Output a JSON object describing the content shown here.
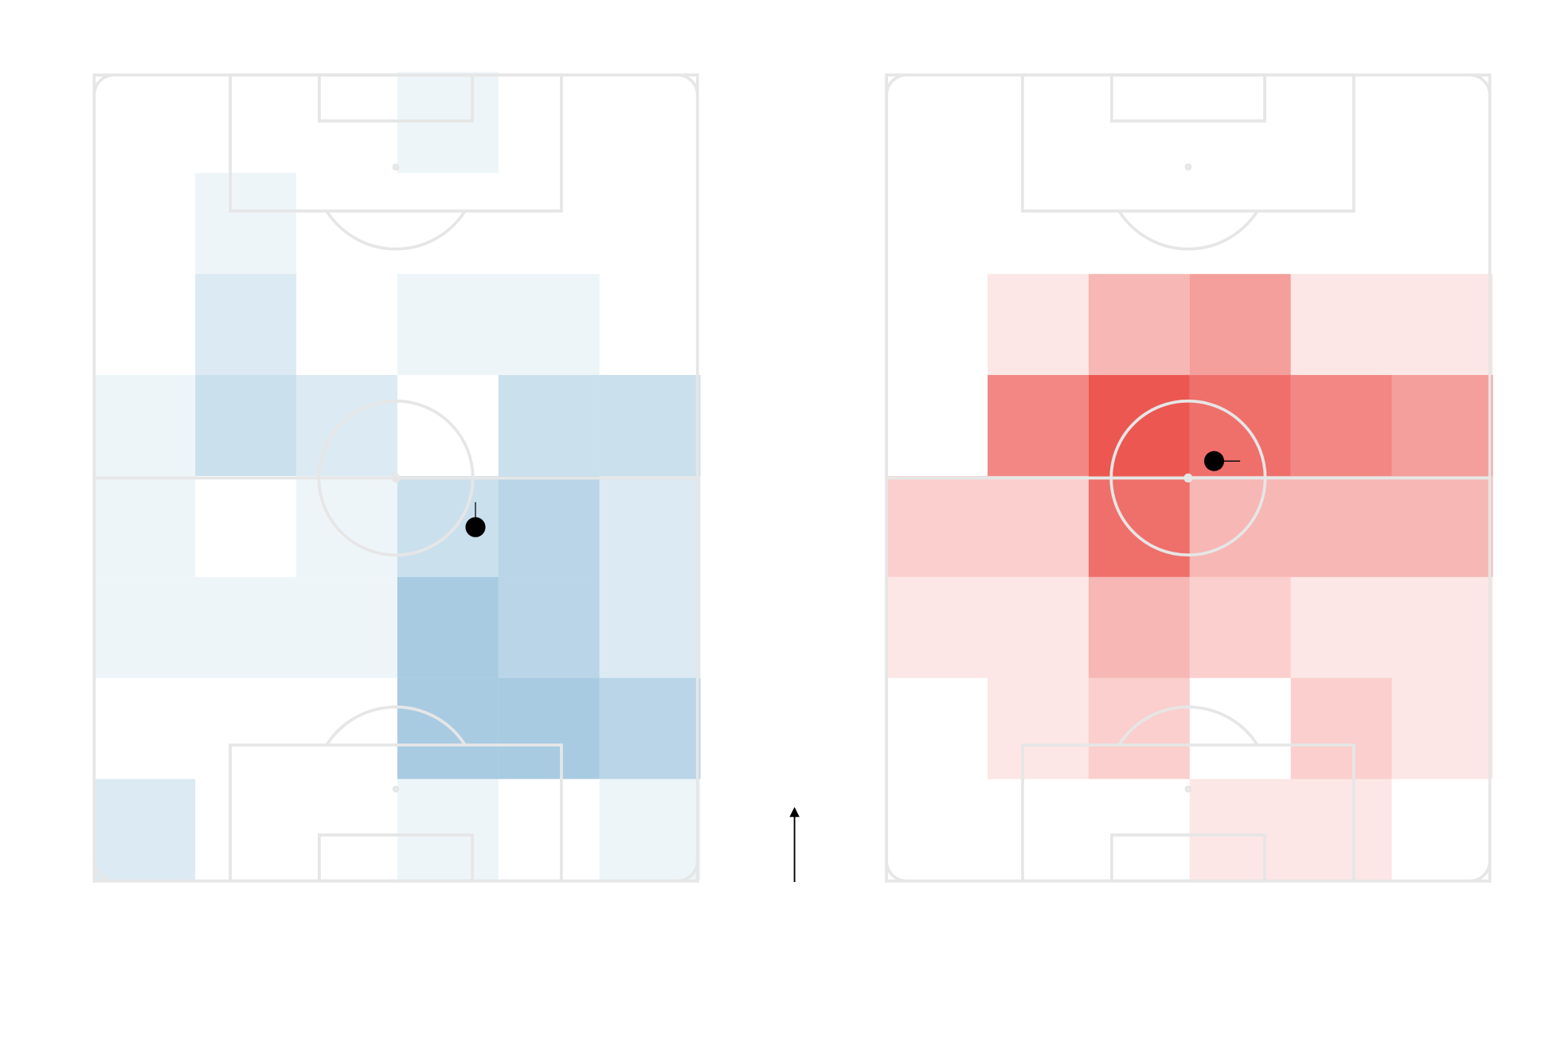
{
  "chart_data": [
    {
      "type": "heatmap",
      "color": "#3d8bbd",
      "values": [
        [
          0,
          0,
          0,
          1,
          0,
          0
        ],
        [
          0,
          1,
          0,
          0,
          0,
          0
        ],
        [
          0,
          2,
          0,
          1,
          1,
          0
        ],
        [
          1,
          3,
          2,
          0,
          3,
          3
        ],
        [
          1,
          0,
          1,
          3,
          4,
          2
        ],
        [
          1,
          1,
          1,
          5,
          4,
          2
        ],
        [
          0,
          0,
          0,
          5,
          5,
          4
        ],
        [
          2,
          0,
          0,
          1,
          0,
          1
        ]
      ],
      "marker": {
        "x": 63.2,
        "y": 56.1
      }
    },
    {
      "type": "heatmap",
      "color": "#e8322b",
      "values": [
        [
          0,
          0,
          0,
          0,
          0,
          0
        ],
        [
          0,
          0,
          0,
          0,
          0,
          0
        ],
        [
          0,
          1,
          3,
          4,
          1,
          1
        ],
        [
          0,
          5,
          7,
          6,
          5,
          4
        ],
        [
          2,
          2,
          6,
          3,
          3,
          3
        ],
        [
          1,
          1,
          3,
          2,
          1,
          1
        ],
        [
          0,
          1,
          2,
          0,
          2,
          1
        ],
        [
          0,
          0,
          0,
          1,
          1,
          0
        ]
      ],
      "marker": {
        "x": 54.3,
        "y": 47.9
      }
    }
  ]
}
